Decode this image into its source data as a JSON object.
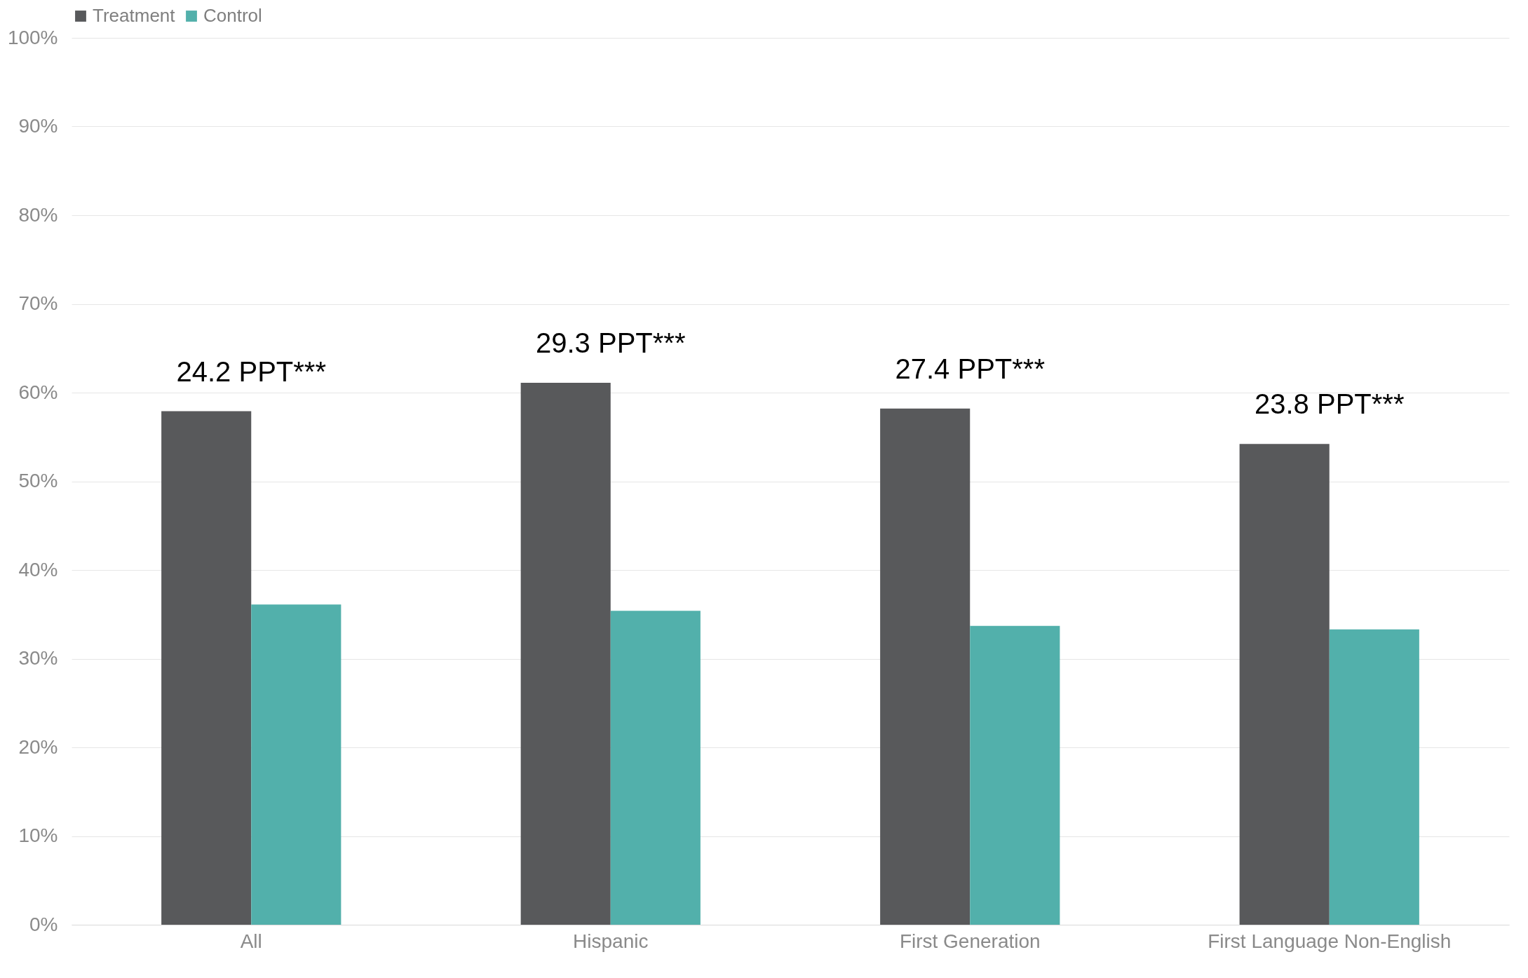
{
  "chart_data": {
    "type": "bar",
    "categories": [
      "All",
      "Hispanic",
      "First Generation",
      "First Language Non-English"
    ],
    "series": [
      {
        "name": "Treatment",
        "color": "#58595b",
        "values": [
          57.9,
          61.1,
          58.2,
          54.2
        ]
      },
      {
        "name": "Control",
        "color": "#52b0ab",
        "values": [
          36.1,
          35.4,
          33.7,
          33.3
        ]
      }
    ],
    "ylim": [
      0,
      100
    ],
    "yticks": [
      {
        "value": 0,
        "label": "0%"
      },
      {
        "value": 10,
        "label": "10%"
      },
      {
        "value": 20,
        "label": "20%"
      },
      {
        "value": 30,
        "label": "30%"
      },
      {
        "value": 40,
        "label": "40%"
      },
      {
        "value": 50,
        "label": "50%"
      },
      {
        "value": 60,
        "label": "60%"
      },
      {
        "value": 70,
        "label": "70%"
      },
      {
        "value": 80,
        "label": "80%"
      },
      {
        "value": 90,
        "label": "90%"
      },
      {
        "value": 100,
        "label": "100%"
      }
    ],
    "grid": true,
    "legend": "top",
    "annotations": [
      "24.2 PPT***",
      "29.3 PPT***",
      "27.4 PPT***",
      "23.8 PPT***"
    ]
  }
}
